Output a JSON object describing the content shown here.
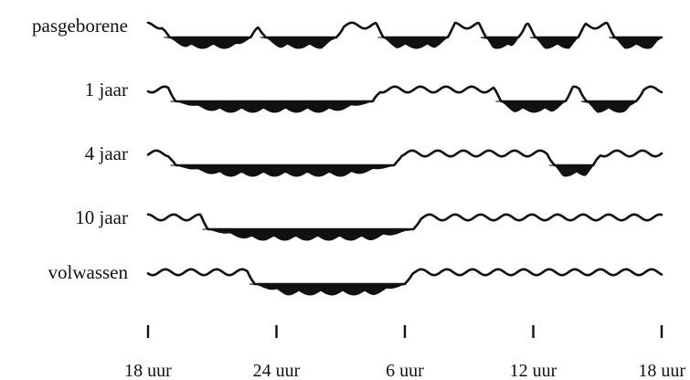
{
  "diagram": {
    "colors": {
      "ink": "#111111",
      "background": "#ffffff"
    },
    "rows": [
      {
        "label": "pasgeborene",
        "sleep_blocks": [
          [
            1.0,
            4.8
          ],
          [
            5.5,
            8.8
          ],
          [
            11.0,
            14.0
          ],
          [
            15.8,
            17.3
          ],
          [
            18.1,
            20.1
          ],
          [
            21.8,
            24.0
          ]
        ]
      },
      {
        "label": "1 jaar",
        "sleep_blocks": [
          [
            1.3,
            10.5
          ],
          [
            16.5,
            19.5
          ],
          [
            20.5,
            22.8
          ]
        ]
      },
      {
        "label": "4 jaar",
        "sleep_blocks": [
          [
            1.3,
            11.5
          ],
          [
            19.0,
            20.8
          ]
        ]
      },
      {
        "label": "10 jaar",
        "sleep_blocks": [
          [
            2.8,
            12.4
          ]
        ]
      },
      {
        "label": "volwassen",
        "sleep_blocks": [
          [
            5.0,
            12.0
          ]
        ]
      }
    ],
    "x_axis": {
      "ticks": [
        {
          "hour": 0,
          "label": "18 uur"
        },
        {
          "hour": 6,
          "label": "24 uur"
        },
        {
          "hour": 12,
          "label": "6 uur"
        },
        {
          "hour": 18,
          "label": "12 uur"
        },
        {
          "hour": 24,
          "label": "18 uur"
        }
      ]
    }
  }
}
